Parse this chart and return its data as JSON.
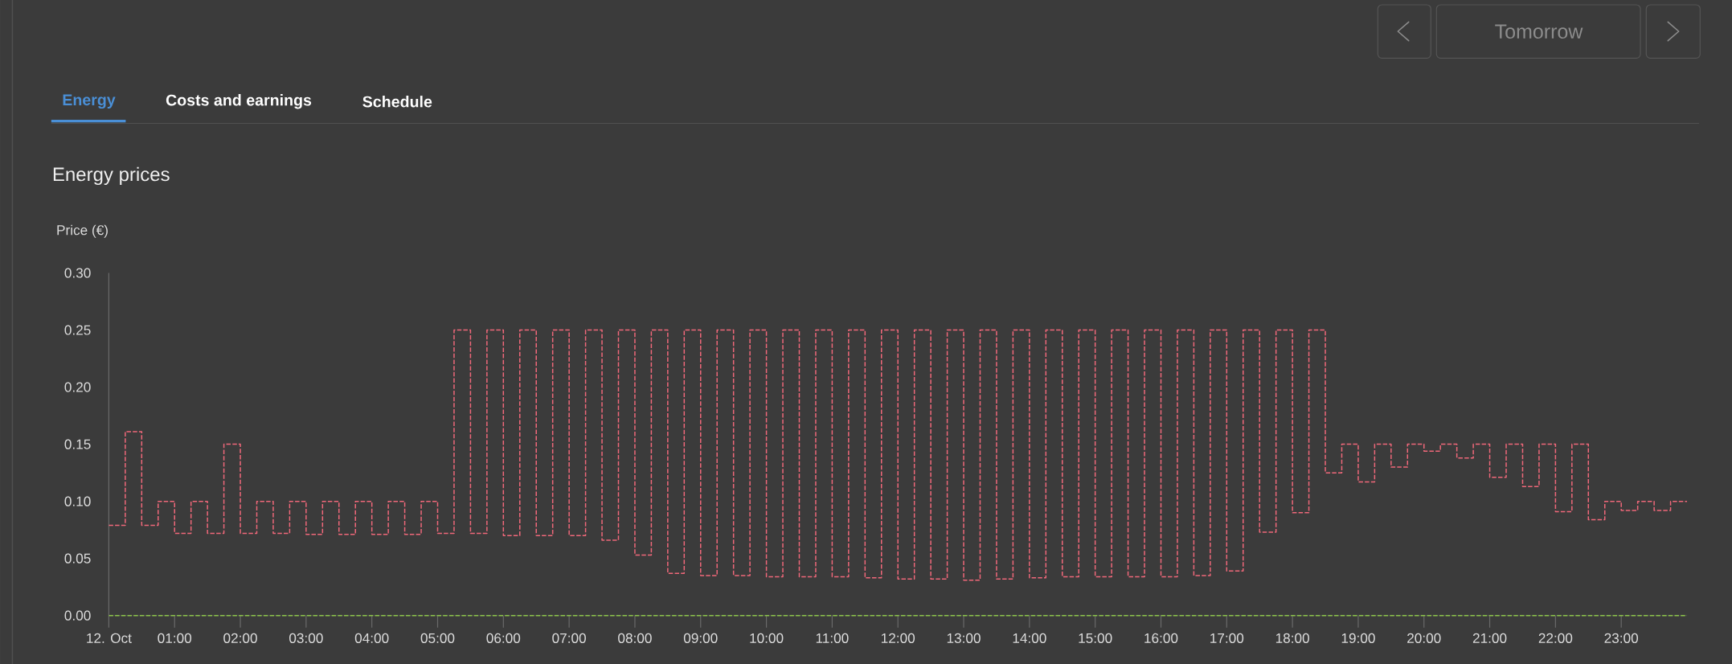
{
  "chart_data": {
    "type": "step",
    "title": "Energy prices",
    "ylabel": "Price (€)",
    "annotations": [
      "Energy",
      "Costs and earnings",
      "Schedule",
      "Tomorrow"
    ],
    "xlim": [
      0,
      24
    ],
    "ylim": [
      0,
      0.3
    ],
    "xticks": [
      {
        "value": 0,
        "label": "12. Oct"
      },
      {
        "value": 1,
        "label": "01:00"
      },
      {
        "value": 2,
        "label": "02:00"
      },
      {
        "value": 3,
        "label": "03:00"
      },
      {
        "value": 4,
        "label": "04:00"
      },
      {
        "value": 5,
        "label": "05:00"
      },
      {
        "value": 6,
        "label": "06:00"
      },
      {
        "value": 7,
        "label": "07:00"
      },
      {
        "value": 8,
        "label": "08:00"
      },
      {
        "value": 9,
        "label": "09:00"
      },
      {
        "value": 10,
        "label": "10:00"
      },
      {
        "value": 11,
        "label": "11:00"
      },
      {
        "value": 12,
        "label": "12:00"
      },
      {
        "value": 13,
        "label": "13:00"
      },
      {
        "value": 14,
        "label": "14:00"
      },
      {
        "value": 15,
        "label": "15:00"
      },
      {
        "value": 16,
        "label": "16:00"
      },
      {
        "value": 17,
        "label": "17:00"
      },
      {
        "value": 18,
        "label": "18:00"
      },
      {
        "value": 19,
        "label": "19:00"
      },
      {
        "value": 20,
        "label": "20:00"
      },
      {
        "value": 21,
        "label": "21:00"
      },
      {
        "value": 22,
        "label": "22:00"
      },
      {
        "value": 23,
        "label": "23:00"
      }
    ],
    "yticks": [
      {
        "value": 0,
        "label": "0.00"
      },
      {
        "value": 0.05,
        "label": "0.05"
      },
      {
        "value": 0.1,
        "label": "0.10"
      },
      {
        "value": 0.15,
        "label": "0.15"
      },
      {
        "value": 0.2,
        "label": "0.20"
      },
      {
        "value": 0.25,
        "label": "0.25"
      },
      {
        "value": 0.3,
        "label": "0.30"
      }
    ],
    "line_style": "dashed",
    "series": [
      {
        "color": "#f0687a",
        "x": [
          0,
          0.25,
          0.5,
          0.75,
          1,
          1.25,
          1.5,
          1.75,
          2,
          2.25,
          2.5,
          2.75,
          3,
          3.25,
          3.5,
          3.75,
          4,
          4.25,
          4.5,
          4.75,
          5,
          5.25,
          5.5,
          5.75,
          6,
          6.25,
          6.5,
          6.75,
          7,
          7.25,
          7.5,
          7.75,
          8,
          8.25,
          8.5,
          8.75,
          9,
          9.25,
          9.5,
          9.75,
          10,
          10.25,
          10.5,
          10.75,
          11,
          11.25,
          11.5,
          11.75,
          12,
          12.25,
          12.5,
          12.75,
          13,
          13.25,
          13.5,
          13.75,
          14,
          14.25,
          14.5,
          14.75,
          15,
          15.25,
          15.5,
          15.75,
          16,
          16.25,
          16.5,
          16.75,
          17,
          17.25,
          17.5,
          17.75,
          18,
          18.25,
          18.5,
          18.75,
          19,
          19.25,
          19.5,
          19.75,
          20,
          20.25,
          20.5,
          20.75,
          21,
          21.25,
          21.5,
          21.75,
          22,
          22.25,
          22.5,
          22.75,
          23,
          23.25,
          23.5,
          23.75,
          24
        ],
        "values": [
          0.079,
          0.161,
          0.079,
          0.1,
          0.072,
          0.1,
          0.072,
          0.15,
          0.072,
          0.1,
          0.072,
          0.1,
          0.071,
          0.1,
          0.071,
          0.1,
          0.071,
          0.1,
          0.071,
          0.1,
          0.072,
          0.25,
          0.072,
          0.25,
          0.07,
          0.25,
          0.07,
          0.25,
          0.07,
          0.25,
          0.066,
          0.25,
          0.053,
          0.25,
          0.037,
          0.25,
          0.035,
          0.25,
          0.035,
          0.25,
          0.034,
          0.25,
          0.034,
          0.25,
          0.034,
          0.25,
          0.033,
          0.25,
          0.032,
          0.25,
          0.032,
          0.25,
          0.031,
          0.25,
          0.032,
          0.25,
          0.033,
          0.25,
          0.034,
          0.25,
          0.034,
          0.25,
          0.034,
          0.25,
          0.034,
          0.25,
          0.035,
          0.25,
          0.039,
          0.25,
          0.073,
          0.25,
          0.09,
          0.25,
          0.125,
          0.15,
          0.117,
          0.15,
          0.13,
          0.15,
          0.144,
          0.15,
          0.138,
          0.15,
          0.121,
          0.15,
          0.113,
          0.15,
          0.091,
          0.15,
          0.084,
          0.1,
          0.092,
          0.1,
          0.092,
          0.1,
          0.1
        ]
      },
      {
        "type": "line",
        "color": "#8bc34a",
        "x": [
          0,
          24
        ],
        "values": [
          0,
          0
        ]
      }
    ]
  }
}
